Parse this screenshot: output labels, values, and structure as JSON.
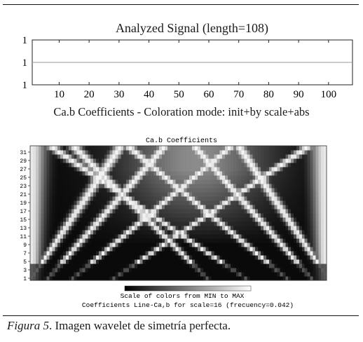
{
  "signal_chart": {
    "title": "Analyzed Signal (length=108)",
    "x_ticks": [
      "10",
      "20",
      "30",
      "40",
      "50",
      "60",
      "70",
      "80",
      "90",
      "100"
    ],
    "y_ticks": [
      "1",
      "1",
      "1"
    ]
  },
  "scalogram": {
    "outer_title": "Ca.b Coefficients - Coloration mode: init+by scale+abs",
    "inner_title": "Ca.b Coefficients",
    "scale_ticks": [
      "31",
      "29",
      "27",
      "25",
      "23",
      "21",
      "19",
      "17",
      "15",
      "13",
      "11",
      "9",
      "7",
      "5",
      "3",
      "1"
    ],
    "colorbar_label": "Scale of colors from MIN to MAX",
    "coeff_line_label": "Coefficients Line-Ca,b for scale=16 (frecuency=0.042)"
  },
  "caption": {
    "figure_label": "Figura 5",
    "text": ". Imagen wavelet de simetría perfecta."
  },
  "chart_data": [
    {
      "type": "line",
      "title": "Analyzed Signal (length=108)",
      "x": [
        1,
        108
      ],
      "y": [
        1,
        1
      ],
      "xlim": [
        1,
        108
      ],
      "x_ticks": [
        10,
        20,
        30,
        40,
        50,
        60,
        70,
        80,
        90,
        100
      ],
      "y_tick_labels": [
        "1",
        "1",
        "1"
      ],
      "grid": false
    },
    {
      "type": "heatmap",
      "title": "Ca.b Coefficients",
      "x_range": [
        1,
        108
      ],
      "y_scales": [
        1,
        32
      ],
      "y_ticks": [
        1,
        3,
        5,
        7,
        9,
        11,
        13,
        15,
        17,
        19,
        21,
        23,
        25,
        27,
        29,
        31
      ],
      "colormap": "gray",
      "colorbar": "Scale of colors from MIN to MAX"
    }
  ]
}
